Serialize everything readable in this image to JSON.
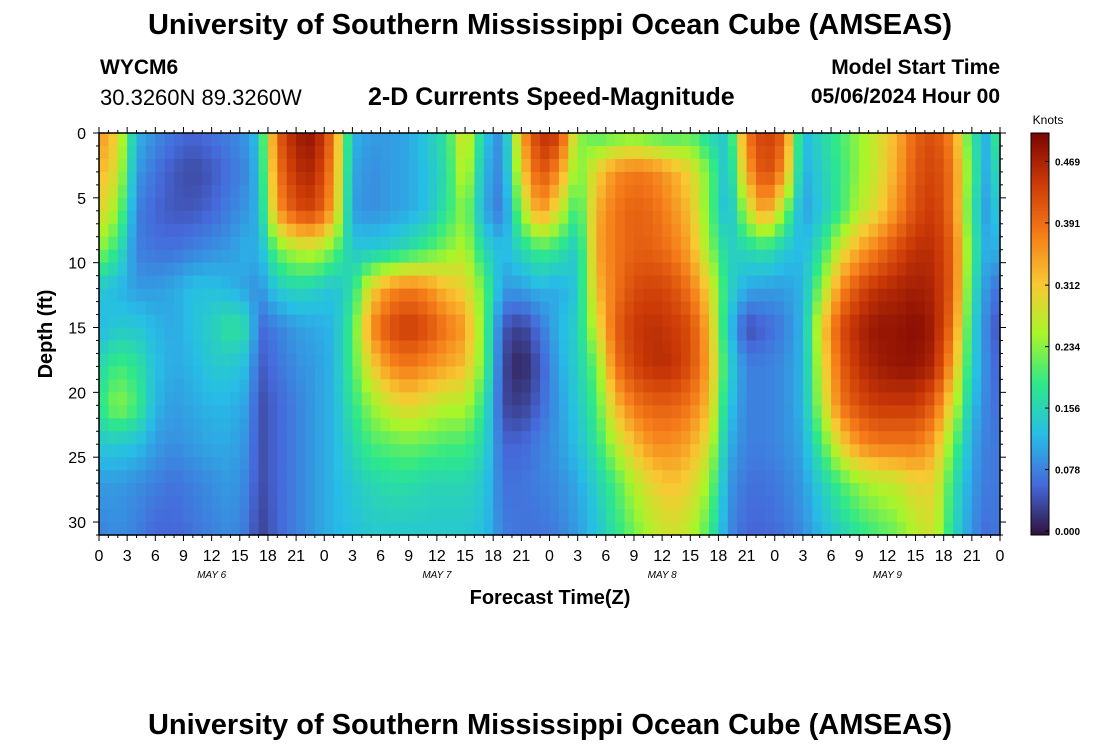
{
  "header": {
    "title": "University of Southern Mississippi Ocean Cube (AMSEAS)",
    "station_id": "WYCM6",
    "station_coords": "30.3260N  89.3260W",
    "subtitle": "2-D Currents Speed-Magnitude",
    "model_start_label": "Model Start Time",
    "model_start_value": "05/06/2024 Hour 00"
  },
  "footer": {
    "title": "University of Southern Mississippi Ocean Cube (AMSEAS)"
  },
  "chart_data": {
    "type": "heatmap",
    "xlabel": "Forecast Time(Z)",
    "ylabel": "Depth (ft)",
    "x_range_hours": [
      0,
      96
    ],
    "y_range_ft": [
      0,
      31
    ],
    "y_inverted": true,
    "x_tick_labels": [
      "0",
      "3",
      "6",
      "9",
      "12",
      "15",
      "18",
      "21",
      "0",
      "3",
      "6",
      "9",
      "12",
      "15",
      "18",
      "21",
      "0",
      "3",
      "6",
      "9",
      "12",
      "15",
      "18",
      "21",
      "0",
      "3",
      "6",
      "9",
      "12",
      "15",
      "18",
      "21",
      "0"
    ],
    "x_tick_hours": [
      0,
      3,
      6,
      9,
      12,
      15,
      18,
      21,
      24,
      27,
      30,
      33,
      36,
      39,
      42,
      45,
      48,
      51,
      54,
      57,
      60,
      63,
      66,
      69,
      72,
      75,
      78,
      81,
      84,
      87,
      90,
      93,
      96
    ],
    "day_labels": [
      {
        "label": "MAY 6",
        "hour": 12
      },
      {
        "label": "MAY 7",
        "hour": 36
      },
      {
        "label": "MAY 8",
        "hour": 60
      },
      {
        "label": "MAY 9",
        "hour": 84
      }
    ],
    "y_ticks": [
      0,
      5,
      10,
      15,
      20,
      25,
      30
    ],
    "colorbar": {
      "title": "Knots",
      "ticks": [
        "0.469",
        "0.391",
        "0.312",
        "0.234",
        "0.156",
        "0.078",
        "0.000"
      ],
      "tick_values": [
        0.469,
        0.391,
        0.312,
        0.234,
        0.156,
        0.078,
        0.0
      ],
      "range": [
        0,
        0.5
      ],
      "colors": [
        "#30123b",
        "#4669db",
        "#27bde6",
        "#2de88a",
        "#a8f52a",
        "#f8c832",
        "#f57b19",
        "#cc3a07",
        "#7a0403"
      ]
    },
    "speed_field_knots": {
      "depths_ft": [
        0,
        3,
        6,
        9,
        12,
        15,
        18,
        21,
        24,
        27,
        31
      ],
      "hours": [
        0,
        2,
        4,
        6,
        8,
        10,
        12,
        14,
        16,
        17,
        19,
        21,
        23,
        25,
        27,
        29,
        31,
        33,
        35,
        37,
        39,
        41,
        43,
        45,
        47,
        49,
        51,
        53,
        55,
        57,
        59,
        61,
        63,
        65,
        67,
        69,
        71,
        73,
        75,
        77,
        79,
        81,
        83,
        85,
        87,
        89,
        91,
        93,
        95,
        96
      ],
      "values": [
        [
          0.36,
          0.3,
          0.12,
          0.09,
          0.07,
          0.06,
          0.07,
          0.08,
          0.1,
          0.14,
          0.4,
          0.47,
          0.48,
          0.38,
          0.12,
          0.1,
          0.1,
          0.11,
          0.14,
          0.18,
          0.3,
          0.14,
          0.08,
          0.34,
          0.45,
          0.44,
          0.24,
          0.2,
          0.21,
          0.22,
          0.2,
          0.19,
          0.21,
          0.16,
          0.14,
          0.38,
          0.44,
          0.4,
          0.12,
          0.16,
          0.2,
          0.24,
          0.28,
          0.33,
          0.4,
          0.42,
          0.36,
          0.18,
          0.1,
          0.26
        ],
        [
          0.33,
          0.28,
          0.1,
          0.07,
          0.05,
          0.04,
          0.05,
          0.07,
          0.09,
          0.13,
          0.38,
          0.45,
          0.46,
          0.36,
          0.11,
          0.09,
          0.1,
          0.11,
          0.13,
          0.17,
          0.28,
          0.12,
          0.08,
          0.3,
          0.42,
          0.36,
          0.22,
          0.3,
          0.36,
          0.38,
          0.37,
          0.34,
          0.3,
          0.22,
          0.12,
          0.34,
          0.43,
          0.36,
          0.11,
          0.15,
          0.19,
          0.24,
          0.28,
          0.34,
          0.41,
          0.43,
          0.38,
          0.2,
          0.09,
          0.22
        ],
        [
          0.3,
          0.24,
          0.08,
          0.06,
          0.05,
          0.05,
          0.06,
          0.08,
          0.1,
          0.12,
          0.35,
          0.42,
          0.43,
          0.34,
          0.1,
          0.09,
          0.1,
          0.11,
          0.13,
          0.18,
          0.24,
          0.11,
          0.07,
          0.24,
          0.36,
          0.28,
          0.18,
          0.33,
          0.38,
          0.4,
          0.39,
          0.36,
          0.32,
          0.22,
          0.11,
          0.26,
          0.36,
          0.24,
          0.1,
          0.14,
          0.19,
          0.26,
          0.3,
          0.36,
          0.42,
          0.44,
          0.38,
          0.18,
          0.08,
          0.18
        ],
        [
          0.24,
          0.18,
          0.08,
          0.07,
          0.07,
          0.08,
          0.09,
          0.1,
          0.12,
          0.11,
          0.22,
          0.26,
          0.27,
          0.22,
          0.14,
          0.14,
          0.15,
          0.17,
          0.2,
          0.23,
          0.26,
          0.16,
          0.12,
          0.16,
          0.2,
          0.18,
          0.14,
          0.34,
          0.38,
          0.4,
          0.4,
          0.38,
          0.34,
          0.24,
          0.15,
          0.16,
          0.18,
          0.14,
          0.12,
          0.18,
          0.28,
          0.34,
          0.38,
          0.42,
          0.45,
          0.45,
          0.4,
          0.2,
          0.09,
          0.14
        ],
        [
          0.14,
          0.12,
          0.1,
          0.1,
          0.11,
          0.13,
          0.13,
          0.12,
          0.1,
          0.09,
          0.14,
          0.16,
          0.15,
          0.13,
          0.17,
          0.3,
          0.36,
          0.38,
          0.36,
          0.32,
          0.3,
          0.22,
          0.1,
          0.1,
          0.12,
          0.11,
          0.14,
          0.32,
          0.38,
          0.42,
          0.43,
          0.42,
          0.38,
          0.3,
          0.16,
          0.11,
          0.1,
          0.1,
          0.12,
          0.24,
          0.36,
          0.42,
          0.45,
          0.46,
          0.47,
          0.46,
          0.4,
          0.18,
          0.07,
          0.08
        ],
        [
          0.12,
          0.14,
          0.14,
          0.12,
          0.11,
          0.13,
          0.15,
          0.18,
          0.16,
          0.06,
          0.08,
          0.1,
          0.11,
          0.12,
          0.2,
          0.36,
          0.42,
          0.44,
          0.42,
          0.38,
          0.35,
          0.22,
          0.05,
          0.03,
          0.07,
          0.12,
          0.15,
          0.28,
          0.4,
          0.44,
          0.45,
          0.44,
          0.42,
          0.33,
          0.14,
          0.04,
          0.06,
          0.08,
          0.12,
          0.3,
          0.42,
          0.46,
          0.48,
          0.48,
          0.49,
          0.47,
          0.38,
          0.16,
          0.06,
          0.05
        ],
        [
          0.16,
          0.2,
          0.18,
          0.13,
          0.11,
          0.12,
          0.14,
          0.14,
          0.12,
          0.05,
          0.07,
          0.09,
          0.1,
          0.12,
          0.2,
          0.3,
          0.36,
          0.38,
          0.36,
          0.34,
          0.32,
          0.22,
          0.04,
          0.01,
          0.05,
          0.11,
          0.15,
          0.22,
          0.38,
          0.43,
          0.45,
          0.45,
          0.42,
          0.34,
          0.16,
          0.08,
          0.08,
          0.09,
          0.12,
          0.28,
          0.4,
          0.45,
          0.47,
          0.48,
          0.48,
          0.46,
          0.34,
          0.15,
          0.07,
          0.06
        ],
        [
          0.18,
          0.24,
          0.2,
          0.12,
          0.1,
          0.11,
          0.12,
          0.12,
          0.1,
          0.04,
          0.06,
          0.08,
          0.1,
          0.12,
          0.18,
          0.24,
          0.28,
          0.3,
          0.28,
          0.26,
          0.26,
          0.18,
          0.04,
          0.03,
          0.06,
          0.1,
          0.14,
          0.2,
          0.32,
          0.38,
          0.4,
          0.4,
          0.38,
          0.32,
          0.14,
          0.08,
          0.08,
          0.09,
          0.12,
          0.26,
          0.38,
          0.42,
          0.44,
          0.44,
          0.44,
          0.4,
          0.28,
          0.13,
          0.07,
          0.07
        ],
        [
          0.14,
          0.14,
          0.13,
          0.1,
          0.09,
          0.1,
          0.11,
          0.11,
          0.09,
          0.04,
          0.06,
          0.08,
          0.1,
          0.12,
          0.16,
          0.2,
          0.21,
          0.22,
          0.21,
          0.2,
          0.2,
          0.16,
          0.06,
          0.06,
          0.08,
          0.1,
          0.13,
          0.18,
          0.26,
          0.32,
          0.36,
          0.36,
          0.34,
          0.28,
          0.12,
          0.08,
          0.08,
          0.09,
          0.11,
          0.2,
          0.3,
          0.36,
          0.38,
          0.38,
          0.38,
          0.34,
          0.22,
          0.11,
          0.07,
          0.08
        ],
        [
          0.1,
          0.1,
          0.09,
          0.08,
          0.07,
          0.08,
          0.09,
          0.1,
          0.08,
          0.04,
          0.06,
          0.08,
          0.1,
          0.12,
          0.14,
          0.16,
          0.17,
          0.17,
          0.16,
          0.16,
          0.16,
          0.14,
          0.07,
          0.07,
          0.08,
          0.09,
          0.11,
          0.15,
          0.2,
          0.26,
          0.3,
          0.32,
          0.3,
          0.24,
          0.1,
          0.07,
          0.07,
          0.08,
          0.1,
          0.15,
          0.2,
          0.24,
          0.26,
          0.27,
          0.3,
          0.3,
          0.18,
          0.1,
          0.07,
          0.08
        ],
        [
          0.08,
          0.09,
          0.08,
          0.06,
          0.06,
          0.07,
          0.08,
          0.09,
          0.07,
          0.03,
          0.06,
          0.08,
          0.1,
          0.12,
          0.13,
          0.14,
          0.14,
          0.14,
          0.14,
          0.14,
          0.14,
          0.13,
          0.08,
          0.07,
          0.07,
          0.08,
          0.1,
          0.13,
          0.18,
          0.22,
          0.26,
          0.28,
          0.26,
          0.2,
          0.09,
          0.06,
          0.06,
          0.07,
          0.09,
          0.12,
          0.15,
          0.18,
          0.2,
          0.22,
          0.26,
          0.28,
          0.16,
          0.09,
          0.06,
          0.08
        ]
      ]
    }
  }
}
